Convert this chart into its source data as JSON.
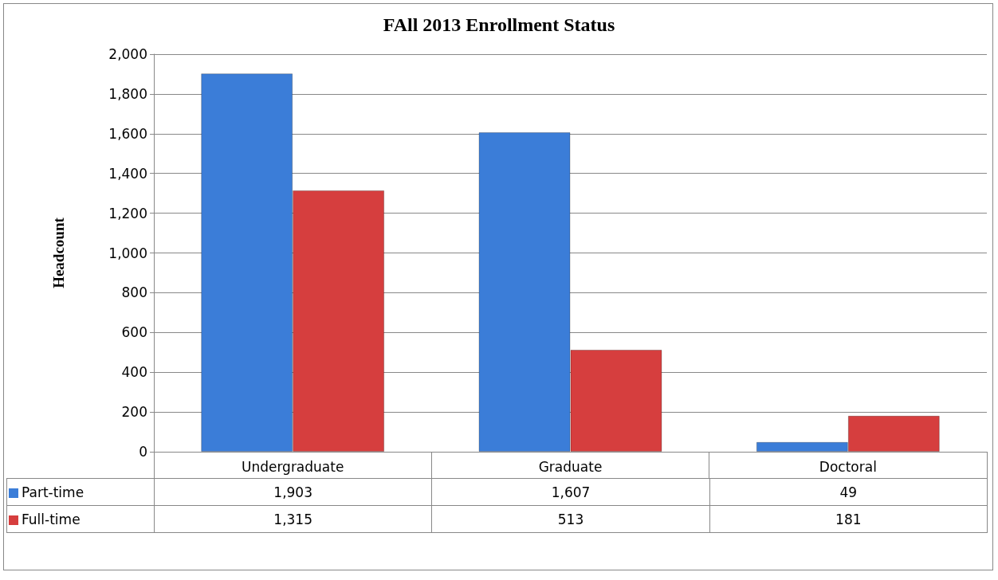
{
  "chart_data": {
    "type": "bar",
    "title": "FAll 2013 Enrollment Status",
    "ylabel": "Headcount",
    "categories": [
      "Undergraduate",
      "Graduate",
      "Doctoral"
    ],
    "series": [
      {
        "name": "Part-time",
        "color": "#3b7dd8",
        "values": [
          1903,
          1607,
          49
        ],
        "value_labels": [
          "1,903",
          "1,607",
          "49"
        ]
      },
      {
        "name": "Full-time",
        "color": "#d63e3e",
        "values": [
          1315,
          513,
          181
        ],
        "value_labels": [
          "1,315",
          "513",
          "181"
        ]
      }
    ],
    "ylim": [
      0,
      2000
    ],
    "yticks": [
      0,
      200,
      400,
      600,
      800,
      {
        "value": 1000,
        "label": "1,000"
      },
      {
        "value": 1200,
        "label": "1,200"
      },
      {
        "value": 1400,
        "label": "1,400"
      },
      {
        "value": 1600,
        "label": "1,600"
      },
      {
        "value": 1800,
        "label": "1,800"
      },
      {
        "value": 2000,
        "label": "2,000"
      }
    ],
    "grid": "y",
    "legend": "bottom"
  }
}
